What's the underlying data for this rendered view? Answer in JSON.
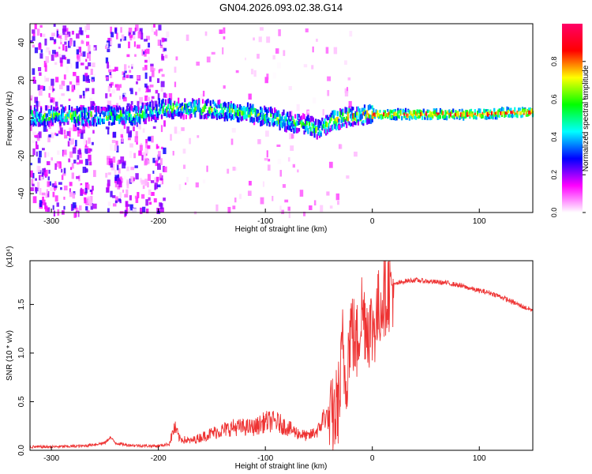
{
  "title": "GN04.2026.093.02.38.G14",
  "chart_data": [
    {
      "type": "heatmap",
      "xlabel": "Height of straight line (km)",
      "ylabel": "Frequency (Hz)",
      "xlim": [
        -320,
        150
      ],
      "ylim": [
        -50,
        50
      ],
      "xticks": [
        -300,
        -200,
        -100,
        0,
        100
      ],
      "yticks": [
        -40,
        -20,
        0,
        20,
        40
      ],
      "colorbar": {
        "label": "Normalized spectral amplitude",
        "range": [
          0,
          1
        ],
        "ticks": [
          "0.0",
          "0.2",
          "0.4",
          "0.6",
          "0.8"
        ],
        "colormap": [
          "#ffffff",
          "#ff00ff",
          "#0000ff",
          "#00ffff",
          "#00ff00",
          "#ffff00",
          "#ff0000",
          "#ff0066"
        ]
      },
      "ridge": {
        "x": [
          -310,
          -280,
          -250,
          -220,
          -200,
          -180,
          -160,
          -140,
          -120,
          -100,
          -80,
          -60,
          -50,
          -40,
          -30,
          -20,
          -10,
          0,
          20,
          50,
          80,
          100,
          130,
          150
        ],
        "y": [
          1,
          1,
          1,
          1.5,
          5,
          5,
          5,
          4,
          3,
          1,
          -2,
          -4,
          -6,
          -2,
          0,
          1,
          1.5,
          2,
          2,
          2,
          2,
          2,
          3,
          3
        ]
      },
      "grid": false
    },
    {
      "type": "line",
      "xlabel": "Height of straight line (km)",
      "ylabel": "SNR (10 * v/v)",
      "y_multiplier": "(x10⁴)",
      "xlim": [
        -320,
        150
      ],
      "ylim": [
        0,
        1.95
      ],
      "xticks": [
        -300,
        -200,
        -100,
        0,
        100
      ],
      "yticks": [
        0.0,
        0.5,
        1.0,
        1.5
      ],
      "color": "#ee3333",
      "series": [
        {
          "x": [
            -320,
            -300,
            -270,
            -250,
            -245,
            -240,
            -230,
            -210,
            -200,
            -190,
            -185,
            -180,
            -170,
            -150,
            -130,
            -110,
            -100,
            -90,
            -80,
            -70,
            -60,
            -50,
            -45,
            -40,
            -35,
            -30,
            -28,
            -25,
            -20,
            -15,
            -10,
            -5,
            0,
            5,
            10,
            20,
            30,
            40,
            50,
            60,
            70,
            80,
            90,
            100,
            110,
            120,
            130,
            140,
            150
          ],
          "y": [
            0.02,
            0.02,
            0.03,
            0.06,
            0.12,
            0.06,
            0.04,
            0.03,
            0.03,
            0.05,
            0.2,
            0.1,
            0.08,
            0.15,
            0.2,
            0.2,
            0.25,
            0.25,
            0.2,
            0.15,
            0.12,
            0.18,
            0.3,
            0.28,
            0.35,
            0.6,
            1.1,
            0.7,
            1.3,
            1.05,
            1.45,
            1.3,
            1.25,
            1.4,
            1.6,
            1.7,
            1.74,
            1.75,
            1.74,
            1.73,
            1.72,
            1.7,
            1.67,
            1.64,
            1.62,
            1.58,
            1.53,
            1.48,
            1.44
          ]
        }
      ],
      "grid": false
    }
  ]
}
